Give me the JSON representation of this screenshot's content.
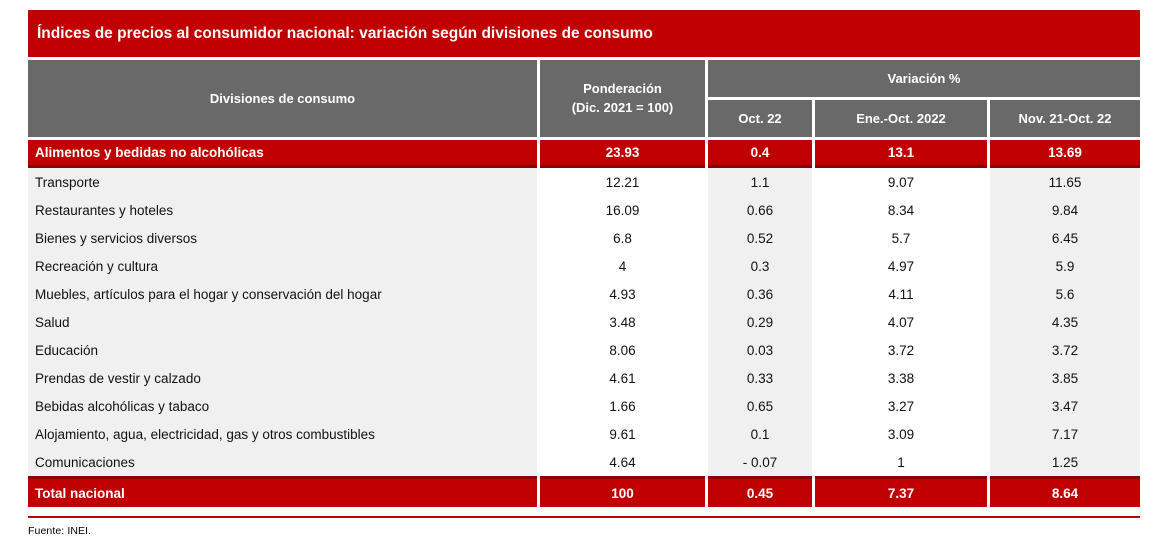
{
  "title": "Índices de precios al consumidor nacional: variación según divisiones de consumo",
  "table": {
    "headers": {
      "division": "Divisiones de consumo",
      "weight_line1": "Ponderación",
      "weight_line2": "(Dic. 2021 = 100)",
      "variation_group": "Variación %",
      "variation_cols": [
        "Oct. 22",
        "Ene.-Oct. 2022",
        "Nov. 21-Oct. 22"
      ]
    },
    "highlight_row": {
      "label": "Alimentos y bedidas no alcohólicas",
      "weight": "23.93",
      "values": [
        "0.4",
        "13.1",
        "13.69"
      ]
    },
    "rows": [
      {
        "label": "Transporte",
        "weight": "12.21",
        "values": [
          "1.1",
          "9.07",
          "11.65"
        ]
      },
      {
        "label": "Restaurantes y hoteles",
        "weight": "16.09",
        "values": [
          "0.66",
          "8.34",
          "9.84"
        ]
      },
      {
        "label": "Bienes y servicios diversos",
        "weight": "6.8",
        "values": [
          "0.52",
          "5.7",
          "6.45"
        ]
      },
      {
        "label": "Recreación y cultura",
        "weight": "4",
        "values": [
          "0.3",
          "4.97",
          "5.9"
        ]
      },
      {
        "label": "Muebles, artículos para el hogar y conservación del hogar",
        "weight": "4.93",
        "values": [
          "0.36",
          "4.11",
          "5.6"
        ]
      },
      {
        "label": "Salud",
        "weight": "3.48",
        "values": [
          "0.29",
          "4.07",
          "4.35"
        ]
      },
      {
        "label": "Educación",
        "weight": "8.06",
        "values": [
          "0.03",
          "3.72",
          "3.72"
        ]
      },
      {
        "label": "Prendas de vestir y calzado",
        "weight": "4.61",
        "values": [
          "0.33",
          "3.38",
          "3.85"
        ]
      },
      {
        "label": "Bebidas alcohólicas y tabaco",
        "weight": "1.66",
        "values": [
          "0.65",
          "3.27",
          "3.47"
        ]
      },
      {
        "label": "Alojamiento, agua, electricidad, gas y otros combustibles",
        "weight": "9.61",
        "values": [
          "0.1",
          "3.09",
          "7.17"
        ]
      },
      {
        "label": "Comunicaciones",
        "weight": "4.64",
        "values": [
          "- 0.07",
          "1",
          "1.25"
        ]
      }
    ],
    "total_row": {
      "label": "Total nacional",
      "weight": "100",
      "values": [
        "0.45",
        "7.37",
        "8.64"
      ]
    }
  },
  "footer": {
    "source": "Fuente: INEI."
  },
  "colors": {
    "accent_red": "#c00000",
    "dark_red": "#8b0000",
    "header_gray": "#696969",
    "cell_gray": "#f0f0f0"
  },
  "chart_data": {
    "type": "table",
    "title": "Índices de precios al consumidor nacional: variación según divisiones de consumo",
    "columns": [
      "Divisiones de consumo",
      "Ponderación (Dic. 2021 = 100)",
      "Oct. 22",
      "Ene.-Oct. 2022",
      "Nov. 21-Oct. 22"
    ],
    "rows": [
      [
        "Alimentos y bedidas no alcohólicas",
        23.93,
        0.4,
        13.1,
        13.69
      ],
      [
        "Transporte",
        12.21,
        1.1,
        9.07,
        11.65
      ],
      [
        "Restaurantes y hoteles",
        16.09,
        0.66,
        8.34,
        9.84
      ],
      [
        "Bienes y servicios diversos",
        6.8,
        0.52,
        5.7,
        6.45
      ],
      [
        "Recreación y cultura",
        4,
        0.3,
        4.97,
        5.9
      ],
      [
        "Muebles, artículos para el hogar y conservación del hogar",
        4.93,
        0.36,
        4.11,
        5.6
      ],
      [
        "Salud",
        3.48,
        0.29,
        4.07,
        4.35
      ],
      [
        "Educación",
        8.06,
        0.03,
        3.72,
        3.72
      ],
      [
        "Prendas de vestir y calzado",
        4.61,
        0.33,
        3.38,
        3.85
      ],
      [
        "Bebidas alcohólicas y tabaco",
        1.66,
        0.65,
        3.27,
        3.47
      ],
      [
        "Alojamiento, agua, electricidad, gas y otros combustibles",
        9.61,
        0.1,
        3.09,
        7.17
      ],
      [
        "Comunicaciones",
        4.64,
        -0.07,
        1,
        1.25
      ],
      [
        "Total nacional",
        100,
        0.45,
        7.37,
        8.64
      ]
    ]
  }
}
